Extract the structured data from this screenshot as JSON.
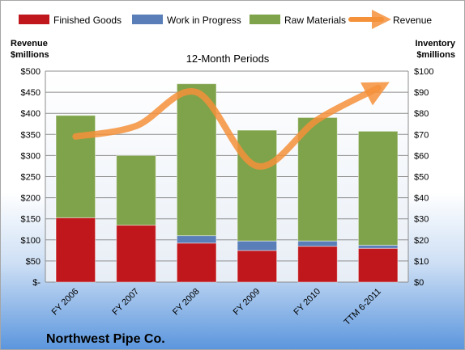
{
  "chart_data": {
    "type": "bar",
    "subtitle": "12-Month Periods",
    "company": "Northwest Pipe Co.",
    "left_axis_label": [
      "Revenue",
      "$millions"
    ],
    "right_axis_label": [
      "Inventory",
      "$millions"
    ],
    "categories": [
      "FY 2006",
      "FY 2007",
      "FY 2008",
      "FY 2009",
      "FY 2010",
      "TTM 6-2011"
    ],
    "stacked": true,
    "left_axis": {
      "min": 0,
      "max": 500,
      "step": 50,
      "tick_labels": [
        "$-",
        "$50",
        "$100",
        "$150",
        "$200",
        "$250",
        "$300",
        "$350",
        "$400",
        "$450",
        "$500"
      ]
    },
    "right_axis": {
      "min": 0,
      "max": 100,
      "step": 10,
      "tick_labels": [
        "$0",
        "$10",
        "$20",
        "$30",
        "$40",
        "$50",
        "$60",
        "$70",
        "$80",
        "$90",
        "$100"
      ]
    },
    "series": [
      {
        "name": "Finished Goods",
        "axis": "right",
        "color": "#c0171c",
        "values": [
          30.5,
          27,
          18.5,
          15,
          17,
          16
        ]
      },
      {
        "name": "Work in Progress",
        "axis": "right",
        "color": "#5a7fb8",
        "values": [
          0,
          0,
          3.5,
          4.5,
          2.5,
          1.5
        ]
      },
      {
        "name": "Raw Materials",
        "axis": "right",
        "color": "#7fa34a",
        "values": [
          48.5,
          33,
          72,
          52.5,
          58.5,
          54
        ]
      },
      {
        "name": "Revenue",
        "axis": "left",
        "type": "line",
        "color": "#f4913a",
        "values": [
          345,
          370,
          450,
          275,
          385,
          460
        ]
      }
    ],
    "grid": true,
    "legend_position": "top"
  }
}
